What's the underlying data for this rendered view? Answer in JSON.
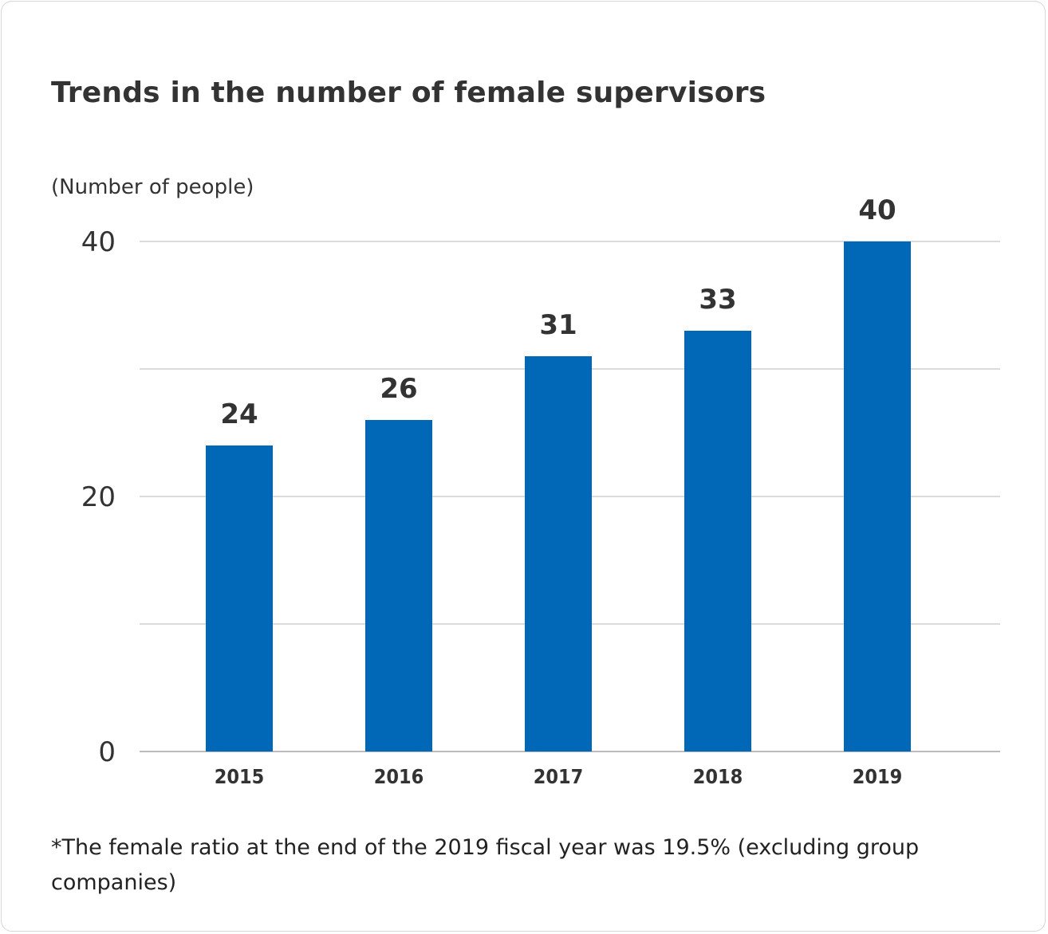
{
  "chart_data": {
    "type": "bar",
    "title": "Trends in the number of female supervisors",
    "ylabel": "(Number of people)",
    "xlabel": "",
    "categories": [
      "2015",
      "2016",
      "2017",
      "2018",
      "2019"
    ],
    "values": [
      24,
      26,
      31,
      33,
      40
    ],
    "ylim": [
      0,
      40
    ],
    "yticks": [
      0,
      20,
      40
    ],
    "gridlines": [
      0,
      10,
      20,
      30,
      40
    ],
    "grid": true,
    "bar_color": "#0068b7",
    "legend": "none"
  },
  "footnote": "*The female ratio at the end of the 2019 fiscal year was 19.5% (excluding group companies)"
}
